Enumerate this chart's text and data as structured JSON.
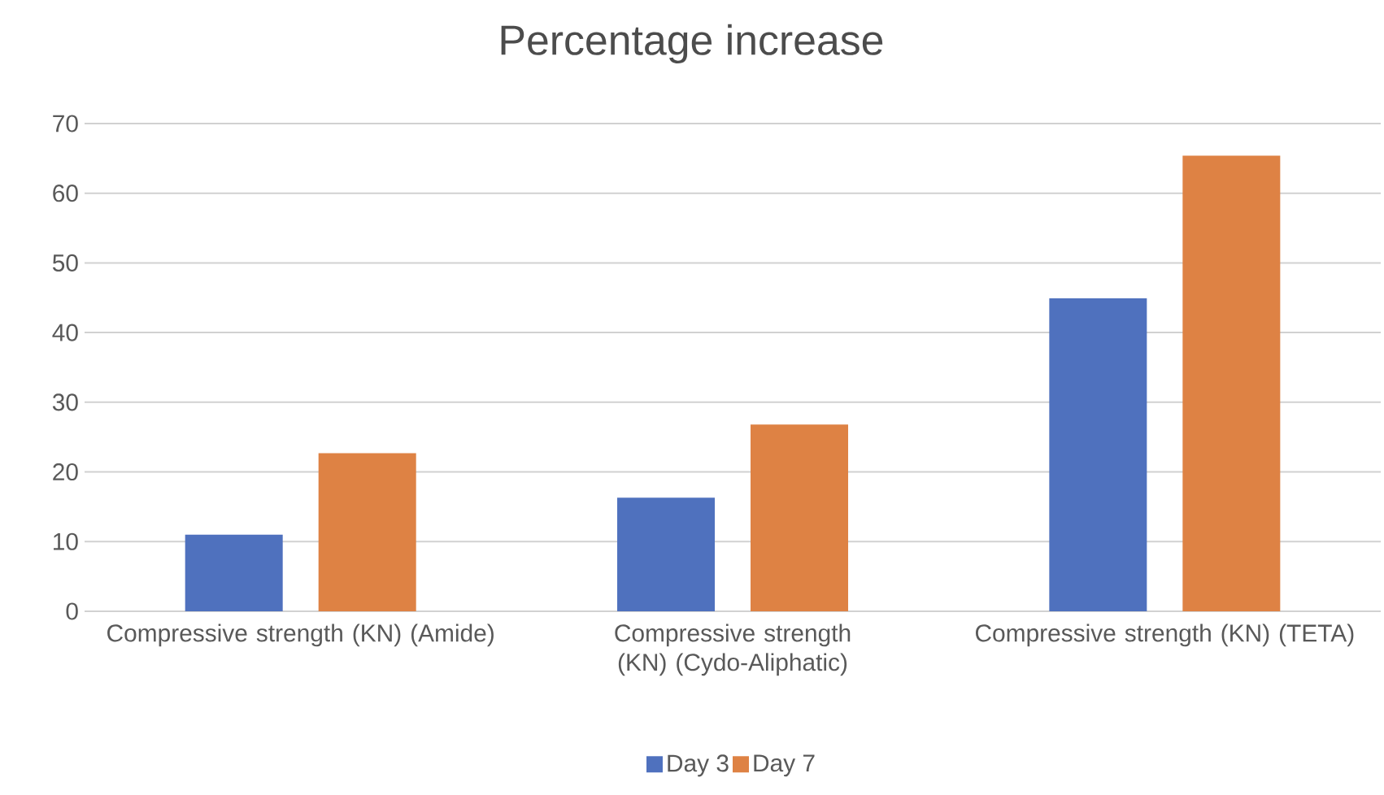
{
  "chart_data": {
    "type": "bar",
    "title": "Percentage increase",
    "categories": [
      "Compressive strength (KN) (Amide)",
      "Compressive strength (KN) (Cydo-Aliphatic)",
      "Compressive strength (KN) (TETA)"
    ],
    "series": [
      {
        "name": "Day 3",
        "color": "#4f71be",
        "values": [
          11.0,
          16.3,
          44.9
        ]
      },
      {
        "name": "Day 7",
        "color": "#de8244",
        "values": [
          22.7,
          26.8,
          65.4
        ]
      }
    ],
    "ylim": [
      0,
      70
    ],
    "yticks": [
      0,
      10,
      20,
      30,
      40,
      50,
      60,
      70
    ],
    "grid": "y",
    "legend": "bottom"
  }
}
